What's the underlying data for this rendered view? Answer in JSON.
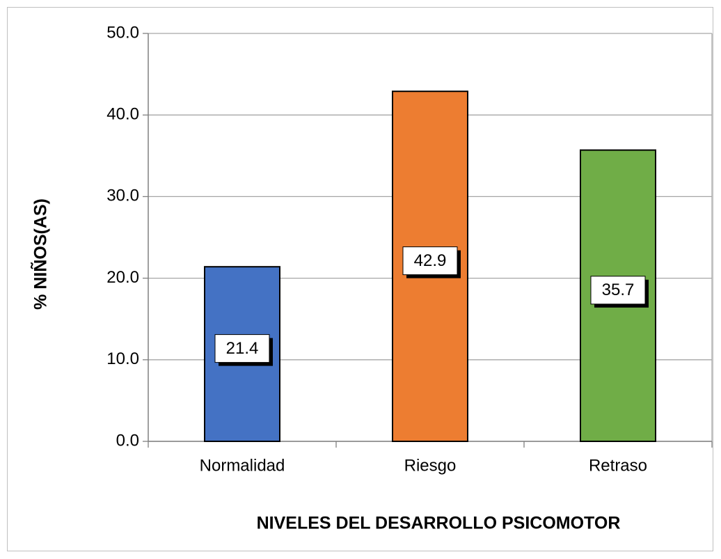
{
  "chart_data": {
    "type": "bar",
    "categories": [
      "Normalidad",
      "Riesgo",
      "Retraso"
    ],
    "values": [
      21.4,
      42.9,
      35.7
    ],
    "colors": [
      "#4472c4",
      "#ed7d31",
      "#70ad47"
    ],
    "xlabel": "NIVELES DEL DESARROLLO PSICOMOTOR",
    "ylabel": "% NIÑOS(AS)",
    "ylim": [
      0,
      50
    ],
    "yticks": [
      {
        "value": 0,
        "label": "0.0"
      },
      {
        "value": 10,
        "label": "10.0"
      },
      {
        "value": 20,
        "label": "20.0"
      },
      {
        "value": 30,
        "label": "30.0"
      },
      {
        "value": 40,
        "label": "40.0"
      },
      {
        "value": 50,
        "label": "50.0"
      }
    ],
    "grid": true
  }
}
